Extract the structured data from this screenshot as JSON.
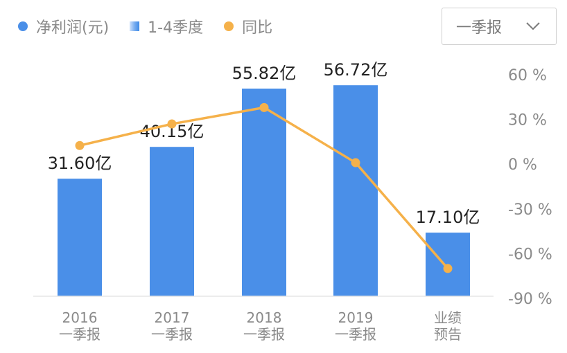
{
  "legend": {
    "net_profit": "净利润(元)",
    "quarter": "1-4季度",
    "yoy": "同比"
  },
  "selector": {
    "value": "一季报"
  },
  "colors": {
    "bar": "#4a8fe8",
    "line": "#f5b14a",
    "axis": "#e6e6e6"
  },
  "chart_data": {
    "type": "bar",
    "categories": [
      [
        "2016",
        "一季报"
      ],
      [
        "2017",
        "一季报"
      ],
      [
        "2018",
        "一季报"
      ],
      [
        "2019",
        "一季报"
      ],
      [
        "业绩",
        "预告"
      ]
    ],
    "series": [
      {
        "name": "净利润(元)",
        "type": "bar",
        "values": [
          31.6,
          40.15,
          55.82,
          56.72,
          17.1
        ],
        "labels": [
          "31.60亿",
          "40.15亿",
          "55.82亿",
          "56.72亿",
          "17.10亿"
        ],
        "ylim": [
          0,
          64
        ]
      },
      {
        "name": "同比",
        "type": "line",
        "values": [
          12.5,
          27,
          38,
          1,
          -70
        ],
        "ylim": [
          -90,
          60
        ]
      }
    ],
    "y2_ticks": [
      "60 %",
      "30 %",
      "0 %",
      "-30 %",
      "-60 %",
      "-90 %"
    ],
    "y2_tick_values": [
      60,
      30,
      0,
      -30,
      -60,
      -90
    ]
  }
}
